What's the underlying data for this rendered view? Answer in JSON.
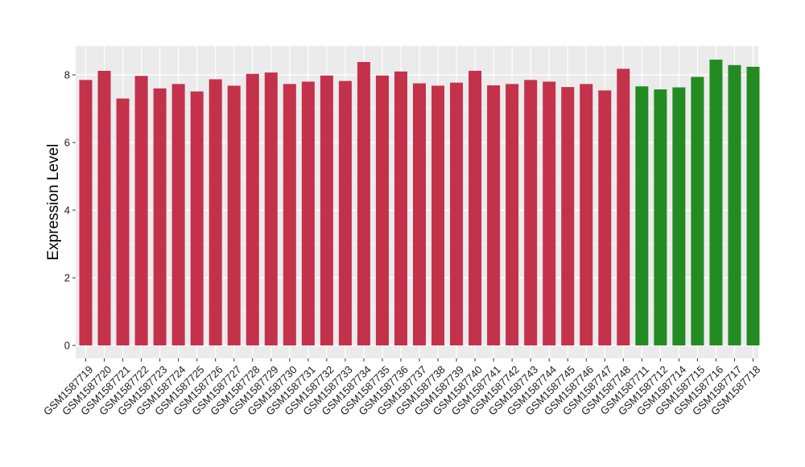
{
  "chart_data": {
    "type": "bar",
    "title": "",
    "xlabel": "",
    "ylabel": "Expression Level",
    "ylim": [
      0,
      8.9
    ],
    "yticks": [
      0,
      2,
      4,
      6,
      8
    ],
    "grid": true,
    "legend": "none",
    "colors": {
      "group_a": "#c4314b",
      "group_b": "#228b22",
      "panel": "#ebebeb",
      "grid": "#ffffff"
    },
    "categories": [
      "GSM1587719",
      "GSM1587720",
      "GSM1587721",
      "GSM1587722",
      "GSM1587723",
      "GSM1587724",
      "GSM1587725",
      "GSM1587726",
      "GSM1587727",
      "GSM1587728",
      "GSM1587729",
      "GSM1587730",
      "GSM1587731",
      "GSM1587732",
      "GSM1587733",
      "GSM1587734",
      "GSM1587735",
      "GSM1587736",
      "GSM1587737",
      "GSM1587738",
      "GSM1587739",
      "GSM1587740",
      "GSM1587741",
      "GSM1587742",
      "GSM1587743",
      "GSM1587744",
      "GSM1587745",
      "GSM1587746",
      "GSM1587747",
      "GSM1587748",
      "GSM1587711",
      "GSM1587712",
      "GSM1587714",
      "GSM1587715",
      "GSM1587716",
      "GSM1587717",
      "GSM1587718"
    ],
    "values": [
      7.85,
      8.12,
      7.3,
      7.97,
      7.6,
      7.73,
      7.51,
      7.87,
      7.68,
      8.03,
      8.07,
      7.73,
      7.8,
      7.98,
      7.82,
      8.38,
      7.98,
      8.1,
      7.75,
      7.68,
      7.77,
      8.12,
      7.69,
      7.73,
      7.85,
      7.8,
      7.64,
      7.73,
      7.54,
      8.18,
      7.66,
      7.57,
      7.63,
      7.94,
      8.45,
      8.29,
      8.24
    ],
    "groups": [
      "a",
      "a",
      "a",
      "a",
      "a",
      "a",
      "a",
      "a",
      "a",
      "a",
      "a",
      "a",
      "a",
      "a",
      "a",
      "a",
      "a",
      "a",
      "a",
      "a",
      "a",
      "a",
      "a",
      "a",
      "a",
      "a",
      "a",
      "a",
      "a",
      "a",
      "b",
      "b",
      "b",
      "b",
      "b",
      "b",
      "b"
    ]
  }
}
